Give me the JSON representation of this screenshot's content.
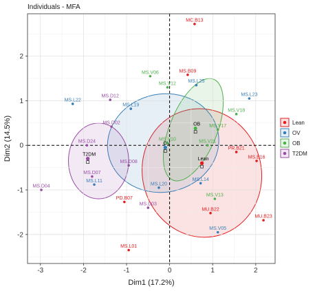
{
  "chart_data": {
    "type": "scatter",
    "title": "Individuals - MFA",
    "xlabel": "Dim1 (17.2%)",
    "ylabel": "Dim2 (14.5%)",
    "xlim": [
      -3.3,
      2.45
    ],
    "ylim": [
      -2.65,
      2.95
    ],
    "xticks": [
      -3,
      -2,
      -1,
      0,
      1,
      2
    ],
    "yticks": [
      -2,
      -1,
      0,
      1,
      2
    ],
    "grid": true,
    "legend_position": "right",
    "groups": [
      {
        "name": "Lean",
        "color": "#e41a1c",
        "centroid": [
          0.75,
          -0.4
        ],
        "ellipse": {
          "cx": 0.75,
          "cy": -0.62,
          "rx": 1.38,
          "ry": 1.45,
          "angle": -16
        },
        "points": [
          {
            "label": "MC.B13",
            "x": 0.58,
            "y": 2.72
          },
          {
            "label": "MS.B09",
            "x": 0.42,
            "y": 1.58
          },
          {
            "label": "PR.B21",
            "x": 1.55,
            "y": -0.15
          },
          {
            "label": "MS.B16",
            "x": 2.02,
            "y": -0.35
          },
          {
            "label": "MU.B22",
            "x": 0.95,
            "y": -1.52
          },
          {
            "label": "MU.B23",
            "x": 2.18,
            "y": -1.68
          },
          {
            "label": "PD.B07",
            "x": -1.05,
            "y": -1.27
          },
          {
            "label": "MS.L01",
            "x": -0.95,
            "y": -2.35
          }
        ]
      },
      {
        "name": "OV",
        "color": "#377eb8",
        "centroid": [
          -0.1,
          -0.05
        ],
        "ellipse": {
          "cx": -0.15,
          "cy": 0.05,
          "rx": 1.3,
          "ry": 1.1,
          "angle": -12
        },
        "points": [
          {
            "label": "MS.L25",
            "x": 0.62,
            "y": 1.35
          },
          {
            "label": "MS.L23",
            "x": 1.85,
            "y": 1.05
          },
          {
            "label": "MS.L22",
            "x": -2.25,
            "y": 0.93
          },
          {
            "label": "MS.L19",
            "x": -0.9,
            "y": 0.82
          },
          {
            "label": "MS.L20",
            "x": -0.25,
            "y": -0.95
          },
          {
            "label": "MS.L14",
            "x": 0.72,
            "y": -0.85
          },
          {
            "label": "MS.L11",
            "x": -1.75,
            "y": -0.88
          },
          {
            "label": "MS.V05",
            "x": 1.12,
            "y": -1.95
          }
        ]
      },
      {
        "name": "OB",
        "color": "#4daf4a",
        "centroid": [
          0.6,
          0.38
        ],
        "ellipse": {
          "cx": 0.55,
          "cy": 0.35,
          "rx": 0.55,
          "ry": 1.22,
          "angle": 22
        },
        "points": [
          {
            "label": "MS.V06",
            "x": -0.45,
            "y": 1.55
          },
          {
            "label": "MS.V12",
            "x": -0.05,
            "y": 1.3
          },
          {
            "label": "MS.V18",
            "x": 1.55,
            "y": 0.7
          },
          {
            "label": "MS.V17",
            "x": 1.12,
            "y": 0.35
          },
          {
            "label": "MS.V10",
            "x": -0.05,
            "y": 0.05
          },
          {
            "label": "MS.V21",
            "x": 0.88,
            "y": 0.0
          },
          {
            "label": "MS.V13",
            "x": 1.05,
            "y": -1.2
          }
        ]
      },
      {
        "name": "T2DM",
        "color": "#984ea3",
        "centroid": [
          -1.9,
          -0.3
        ],
        "ellipse": {
          "cx": -1.65,
          "cy": -0.35,
          "rx": 0.7,
          "ry": 0.85,
          "angle": 0
        },
        "points": [
          {
            "label": "MS.D12",
            "x": -1.38,
            "y": 1.02
          },
          {
            "label": "MS.D02",
            "x": -1.35,
            "y": 0.42
          },
          {
            "label": "MS.D24",
            "x": -1.92,
            "y": 0.0
          },
          {
            "label": "MS.D07",
            "x": -1.8,
            "y": -0.7
          },
          {
            "label": "MS.D08",
            "x": -0.95,
            "y": -0.45
          },
          {
            "label": "MS.D03",
            "x": -0.5,
            "y": -1.4
          },
          {
            "label": "MS.D04",
            "x": -2.98,
            "y": -1.0
          }
        ]
      }
    ]
  }
}
